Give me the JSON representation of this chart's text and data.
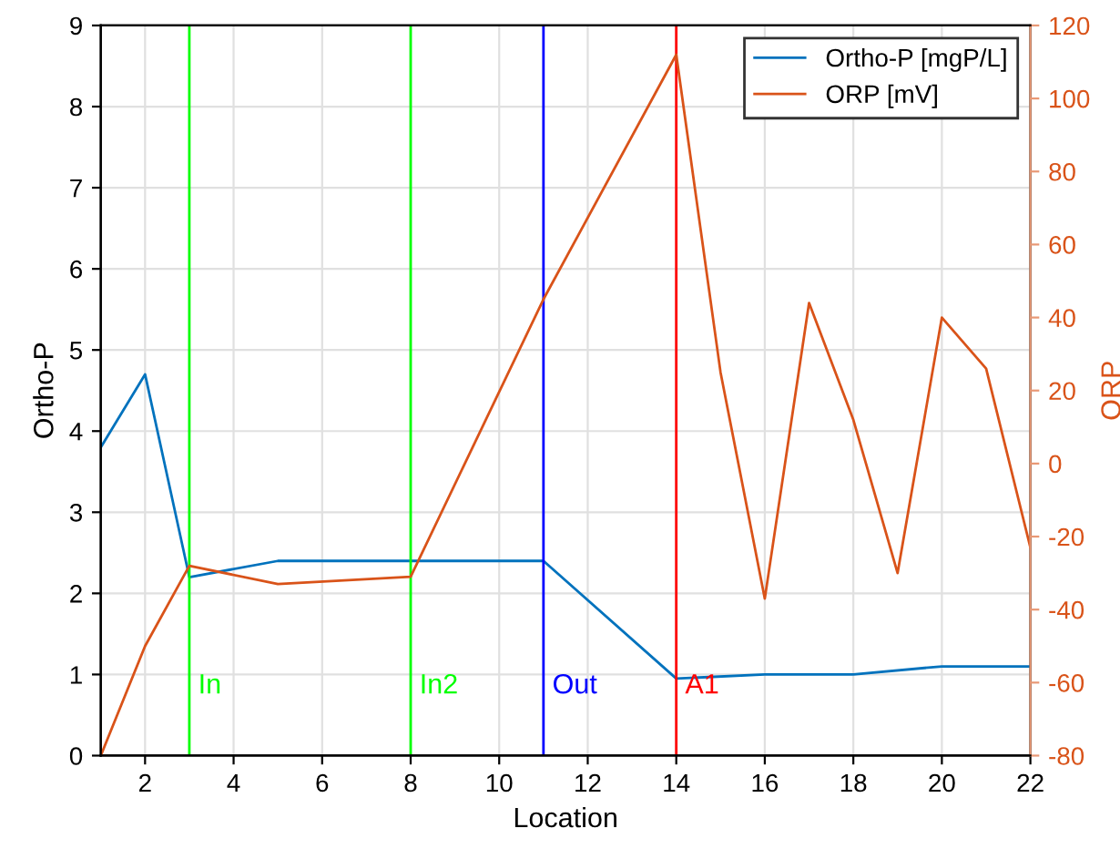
{
  "chart_data": {
    "type": "line",
    "xlabel": "Location",
    "ylabel": "Ortho-P",
    "y2label": "ORP",
    "series": [
      {
        "name": "Ortho-P [mgP/L]",
        "color": "#0072bd",
        "x": [
          1,
          2,
          3,
          5,
          8,
          11,
          14,
          16,
          18,
          20,
          22
        ],
        "values": [
          3.8,
          4.7,
          2.2,
          2.4,
          2.4,
          2.4,
          0.95,
          1.0,
          1.0,
          1.1,
          1.1
        ]
      },
      {
        "name": "ORP [mV]",
        "color": "#d95319",
        "axis": "y2",
        "x": [
          1,
          2,
          3,
          5,
          8,
          11,
          14,
          15,
          16,
          17,
          18,
          19,
          20,
          21,
          22
        ],
        "values": [
          -80,
          -50,
          -28,
          -33,
          -31,
          45,
          112,
          25,
          -37,
          44,
          12,
          -30,
          40,
          26,
          -23
        ]
      }
    ],
    "xlim": [
      1,
      22
    ],
    "xticks": [
      2,
      4,
      6,
      8,
      10,
      12,
      14,
      16,
      18,
      20,
      22
    ],
    "ylim": [
      0,
      9
    ],
    "yticks": [
      0,
      1,
      2,
      3,
      4,
      5,
      6,
      7,
      8,
      9
    ],
    "y2lim": [
      -80,
      120
    ],
    "y2ticks": [
      -80,
      -60,
      -40,
      -20,
      0,
      20,
      40,
      60,
      80,
      100,
      120
    ],
    "ref_lines": [
      {
        "axis": "x",
        "value": 3,
        "label": "In",
        "color": "#00ff00"
      },
      {
        "axis": "x",
        "value": 8,
        "label": "In2",
        "color": "#00ff00"
      },
      {
        "axis": "x",
        "value": 11,
        "label": "Out",
        "color": "#0000ff"
      },
      {
        "axis": "x",
        "value": 14,
        "label": "A1",
        "color": "#ff0000"
      }
    ],
    "grid": true,
    "legend": "top right",
    "marker": "none",
    "line_style": "solid"
  }
}
